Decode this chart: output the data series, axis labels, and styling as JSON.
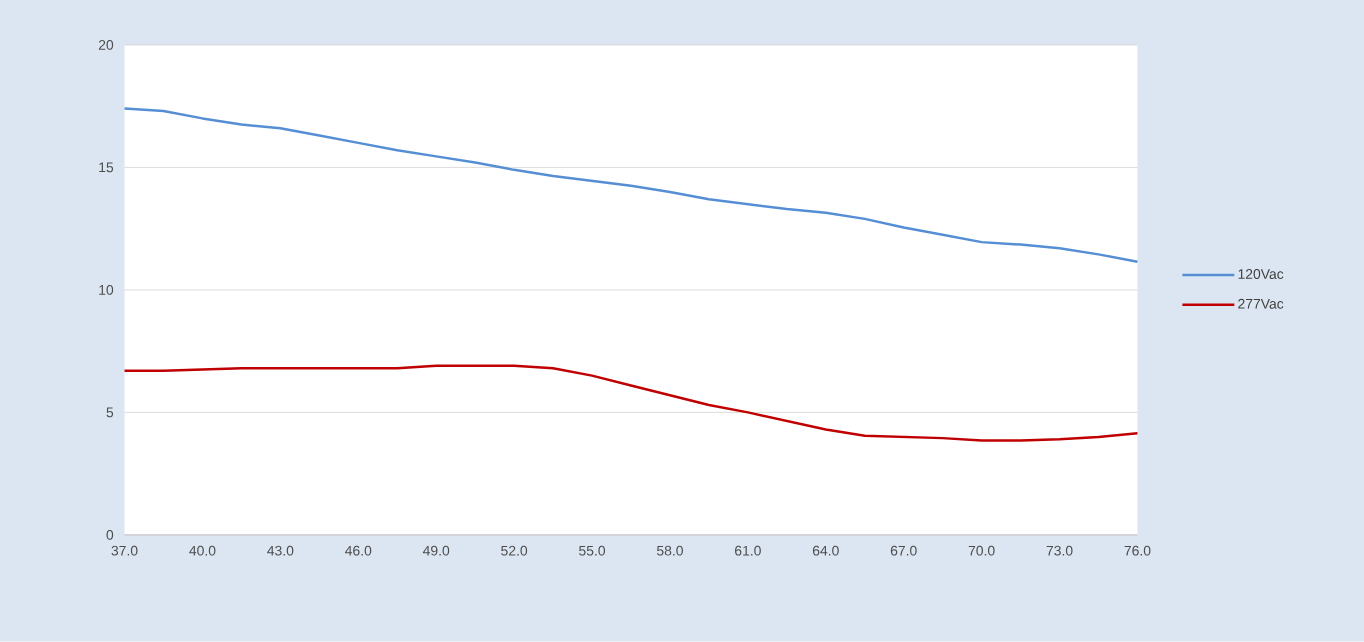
{
  "chart_data": {
    "type": "line",
    "x": [
      37,
      38.5,
      40,
      41.5,
      43,
      44.5,
      46,
      47.5,
      49,
      50.5,
      52,
      53.5,
      55,
      56.5,
      58,
      59.5,
      61,
      62.5,
      64,
      65.5,
      67,
      68.5,
      70,
      71.5,
      73,
      74.5,
      76
    ],
    "series": [
      {
        "name": "120Vac",
        "color": "#558ed5",
        "values": [
          17.4,
          17.3,
          17.0,
          16.75,
          16.6,
          16.3,
          16.0,
          15.7,
          15.45,
          15.2,
          14.9,
          14.65,
          14.45,
          14.25,
          14.0,
          13.7,
          13.5,
          13.3,
          13.15,
          12.9,
          12.55,
          12.25,
          11.95,
          11.85,
          11.7,
          11.45,
          11.15
        ]
      },
      {
        "name": "277Vac",
        "color": "#c00000",
        "values": [
          6.7,
          6.7,
          6.75,
          6.8,
          6.8,
          6.8,
          6.8,
          6.8,
          6.9,
          6.9,
          6.9,
          6.8,
          6.5,
          6.1,
          5.7,
          5.3,
          5.0,
          4.65,
          4.3,
          4.05,
          4.0,
          3.95,
          3.85,
          3.85,
          3.9,
          4.0,
          4.15
        ]
      }
    ],
    "xlim": [
      37,
      76
    ],
    "xticks": [
      {
        "value": 37,
        "label": "37.0"
      },
      {
        "value": 40,
        "label": "40.0"
      },
      {
        "value": 43,
        "label": "43.0"
      },
      {
        "value": 46,
        "label": "46.0"
      },
      {
        "value": 49,
        "label": "49.0"
      },
      {
        "value": 52,
        "label": "52.0"
      },
      {
        "value": 55,
        "label": "55.0"
      },
      {
        "value": 58,
        "label": "58.0"
      },
      {
        "value": 61,
        "label": "61.0"
      },
      {
        "value": 64,
        "label": "64.0"
      },
      {
        "value": 67,
        "label": "67.0"
      },
      {
        "value": 70,
        "label": "70.0"
      },
      {
        "value": 73,
        "label": "73.0"
      },
      {
        "value": 76,
        "label": "76.0"
      }
    ],
    "ylim": [
      0,
      20
    ],
    "yticks": [
      0,
      5,
      10,
      15,
      20
    ],
    "grid": "y",
    "legend": "right",
    "marker": "none",
    "line_style": "solid"
  }
}
